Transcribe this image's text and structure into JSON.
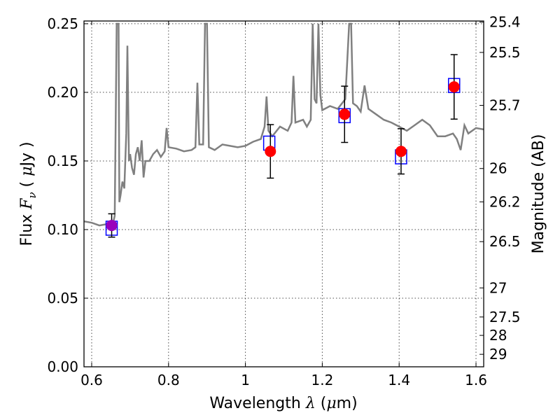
{
  "chart_data": {
    "type": "scatter",
    "title": "",
    "xlabel": "Wavelength  λ (μm)",
    "ylabel": "Flux  F_ν  ( μJy )",
    "ylabel_parts": {
      "pre": "Flux  ",
      "var": "F",
      "sub": "ν",
      "mid": "  ( ",
      "mu": "μ",
      "post": "Jy )"
    },
    "xlabel_parts": {
      "pre": "Wavelength  ",
      "var": "λ",
      "mid": " (",
      "mu": "μ",
      "post": "m)"
    },
    "y2label": "Magnitude (AB)",
    "xlim": [
      0.58,
      1.62
    ],
    "ylim": [
      0.0,
      0.252
    ],
    "grid": true,
    "xticks": [
      0.6,
      0.8,
      1.0,
      1.2,
      1.4,
      1.6
    ],
    "xtick_labels": [
      "0.6",
      "0.8",
      "1",
      "1.2",
      "1.4",
      "1.6"
    ],
    "yticks": [
      0.0,
      0.05,
      0.1,
      0.15,
      0.2,
      0.25
    ],
    "ytick_labels": [
      "0.00",
      "0.05",
      "0.10",
      "0.15",
      "0.20",
      "0.25"
    ],
    "mag_ticks": [
      {
        "label": "25.4",
        "flux": 0.2512
      },
      {
        "label": "25.5",
        "flux": 0.2291
      },
      {
        "label": "25.7",
        "flux": 0.1905
      },
      {
        "label": "26",
        "flux": 0.1445
      },
      {
        "label": "26.2",
        "flux": 0.1202
      },
      {
        "label": "26.5",
        "flux": 0.0912
      },
      {
        "label": "27",
        "flux": 0.0575
      },
      {
        "label": "27.5",
        "flux": 0.0363
      },
      {
        "label": "28",
        "flux": 0.0229
      },
      {
        "label": "29",
        "flux": 0.0091
      }
    ],
    "observed": {
      "x": [
        0.652,
        1.065,
        1.258,
        1.405,
        1.543
      ],
      "y": [
        0.103,
        0.157,
        0.184,
        0.157,
        0.204
      ],
      "yerr": [
        0.0085,
        0.0195,
        0.0205,
        0.0165,
        0.0235
      ],
      "colors": [
        "#9900bb",
        "#ff0000",
        "#ff0000",
        "#ff0000",
        "#ff0000"
      ]
    },
    "model_boxes": {
      "x": [
        0.652,
        1.062,
        1.258,
        1.405,
        1.543
      ],
      "y": [
        0.101,
        0.163,
        0.183,
        0.153,
        0.205
      ]
    },
    "spectrum": [
      [
        0.58,
        0.106
      ],
      [
        0.6,
        0.105
      ],
      [
        0.62,
        0.103
      ],
      [
        0.64,
        0.104
      ],
      [
        0.655,
        0.104
      ],
      [
        0.66,
        0.11
      ],
      [
        0.665,
        0.25
      ],
      [
        0.67,
        0.25
      ],
      [
        0.672,
        0.12
      ],
      [
        0.675,
        0.125
      ],
      [
        0.68,
        0.135
      ],
      [
        0.685,
        0.13
      ],
      [
        0.69,
        0.17
      ],
      [
        0.693,
        0.234
      ],
      [
        0.697,
        0.15
      ],
      [
        0.7,
        0.155
      ],
      [
        0.705,
        0.145
      ],
      [
        0.71,
        0.14
      ],
      [
        0.715,
        0.155
      ],
      [
        0.72,
        0.16
      ],
      [
        0.725,
        0.15
      ],
      [
        0.73,
        0.165
      ],
      [
        0.735,
        0.138
      ],
      [
        0.74,
        0.15
      ],
      [
        0.75,
        0.15
      ],
      [
        0.76,
        0.155
      ],
      [
        0.77,
        0.158
      ],
      [
        0.78,
        0.153
      ],
      [
        0.79,
        0.157
      ],
      [
        0.795,
        0.174
      ],
      [
        0.8,
        0.16
      ],
      [
        0.82,
        0.159
      ],
      [
        0.84,
        0.157
      ],
      [
        0.86,
        0.158
      ],
      [
        0.87,
        0.16
      ],
      [
        0.875,
        0.207
      ],
      [
        0.88,
        0.162
      ],
      [
        0.89,
        0.162
      ],
      [
        0.895,
        0.25
      ],
      [
        0.9,
        0.25
      ],
      [
        0.905,
        0.16
      ],
      [
        0.92,
        0.158
      ],
      [
        0.94,
        0.162
      ],
      [
        0.96,
        0.161
      ],
      [
        0.98,
        0.16
      ],
      [
        1.0,
        0.161
      ],
      [
        1.02,
        0.164
      ],
      [
        1.04,
        0.166
      ],
      [
        1.05,
        0.175
      ],
      [
        1.055,
        0.197
      ],
      [
        1.06,
        0.172
      ],
      [
        1.07,
        0.168
      ],
      [
        1.09,
        0.175
      ],
      [
        1.11,
        0.172
      ],
      [
        1.12,
        0.178
      ],
      [
        1.125,
        0.212
      ],
      [
        1.13,
        0.178
      ],
      [
        1.15,
        0.18
      ],
      [
        1.16,
        0.175
      ],
      [
        1.17,
        0.18
      ],
      [
        1.175,
        0.25
      ],
      [
        1.18,
        0.195
      ],
      [
        1.185,
        0.192
      ],
      [
        1.19,
        0.25
      ],
      [
        1.195,
        0.198
      ],
      [
        1.2,
        0.187
      ],
      [
        1.22,
        0.19
      ],
      [
        1.24,
        0.188
      ],
      [
        1.26,
        0.195
      ],
      [
        1.27,
        0.25
      ],
      [
        1.275,
        0.25
      ],
      [
        1.28,
        0.192
      ],
      [
        1.29,
        0.19
      ],
      [
        1.3,
        0.186
      ],
      [
        1.31,
        0.205
      ],
      [
        1.32,
        0.188
      ],
      [
        1.34,
        0.184
      ],
      [
        1.36,
        0.18
      ],
      [
        1.38,
        0.178
      ],
      [
        1.4,
        0.175
      ],
      [
        1.42,
        0.172
      ],
      [
        1.44,
        0.176
      ],
      [
        1.46,
        0.18
      ],
      [
        1.48,
        0.176
      ],
      [
        1.5,
        0.168
      ],
      [
        1.52,
        0.168
      ],
      [
        1.54,
        0.17
      ],
      [
        1.55,
        0.166
      ],
      [
        1.56,
        0.158
      ],
      [
        1.57,
        0.176
      ],
      [
        1.58,
        0.17
      ],
      [
        1.6,
        0.174
      ],
      [
        1.62,
        0.173
      ]
    ],
    "colors": {
      "spectrum": "#808080",
      "box": "#0000ff",
      "errorbar": "#000000"
    }
  }
}
